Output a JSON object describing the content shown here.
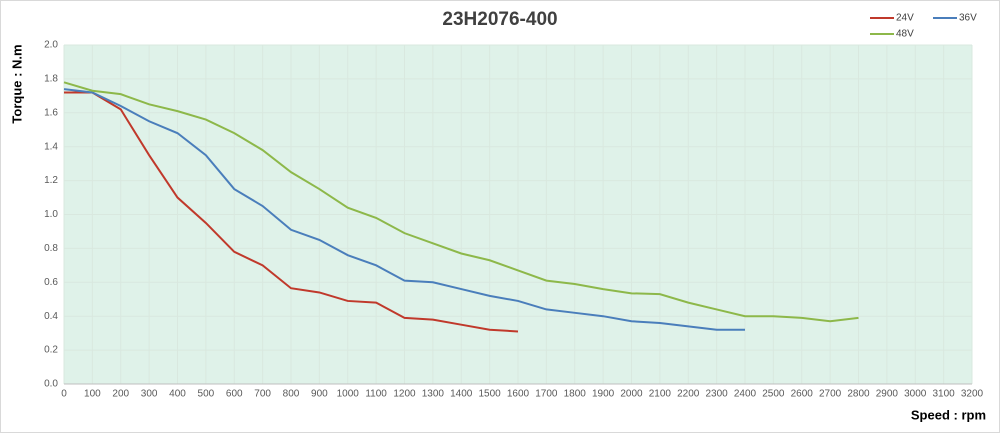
{
  "chart_data": {
    "type": "line",
    "title": "23H2076-400",
    "x_label": "Speed : rpm",
    "y_label": "Torque : N.m",
    "x": [
      0,
      100,
      200,
      300,
      400,
      500,
      600,
      700,
      800,
      900,
      1000,
      1100,
      1200,
      1300,
      1400,
      1500,
      1600,
      1700,
      1800,
      1900,
      2000,
      2100,
      2200,
      2300,
      2400,
      2500,
      2600,
      2700,
      2800
    ],
    "series": [
      {
        "name": "24V",
        "color": "#c0392b",
        "values": [
          1.72,
          1.72,
          1.62,
          1.35,
          1.1,
          0.95,
          0.78,
          0.7,
          0.565,
          0.54,
          0.49,
          0.48,
          0.39,
          0.38,
          0.35,
          0.32,
          0.31,
          null,
          null,
          null,
          null,
          null,
          null,
          null,
          null,
          null,
          null,
          null,
          null
        ]
      },
      {
        "name": "36V",
        "color": "#4a7ebb",
        "values": [
          1.74,
          1.72,
          1.64,
          1.55,
          1.48,
          1.35,
          1.15,
          1.05,
          0.91,
          0.85,
          0.76,
          0.7,
          0.61,
          0.6,
          0.56,
          0.52,
          0.49,
          0.44,
          0.42,
          0.4,
          0.37,
          0.36,
          0.34,
          0.32,
          0.32,
          null,
          null,
          null,
          null
        ]
      },
      {
        "name": "48V",
        "color": "#8db84a",
        "values": [
          1.78,
          1.73,
          1.71,
          1.65,
          1.61,
          1.56,
          1.48,
          1.38,
          1.25,
          1.15,
          1.04,
          0.98,
          0.89,
          0.83,
          0.77,
          0.73,
          0.67,
          0.61,
          0.59,
          0.56,
          0.535,
          0.53,
          0.48,
          0.44,
          0.4,
          0.4,
          0.39,
          0.37,
          0.39
        ]
      }
    ],
    "xlim": [
      0,
      3200
    ],
    "xticks": [
      0,
      100,
      200,
      300,
      400,
      500,
      600,
      700,
      800,
      900,
      1000,
      1100,
      1200,
      1300,
      1400,
      1500,
      1600,
      1700,
      1800,
      1900,
      2000,
      2100,
      2200,
      2300,
      2400,
      2500,
      2600,
      2700,
      2800,
      2900,
      3000,
      3100,
      3200
    ],
    "ylim": [
      0,
      2
    ],
    "yticks": [
      {
        "value": 0,
        "label": "0.0"
      },
      0.2,
      0.4,
      0.6,
      0.8,
      {
        "value": 1,
        "label": "1.0"
      },
      1.2,
      1.4,
      1.6,
      1.8,
      {
        "value": 2,
        "label": "2.0"
      }
    ],
    "grid": true,
    "legend": "top-right"
  }
}
